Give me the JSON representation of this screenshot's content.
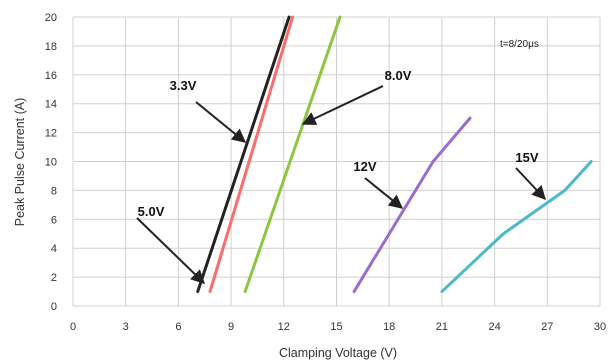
{
  "chart_data": {
    "type": "line",
    "xlabel": "Clamping Voltage (V)",
    "ylabel": "Peak  Pulse Current (A)",
    "xlim": [
      0,
      30
    ],
    "ylim": [
      0,
      20
    ],
    "xticks": [
      "0",
      "3",
      "6",
      "9",
      "12",
      "15",
      "18",
      "21",
      "24",
      "27",
      "30"
    ],
    "yticks": [
      "0",
      "2",
      "4",
      "6",
      "8",
      "10",
      "12",
      "14",
      "16",
      "18",
      "20"
    ],
    "grid": true,
    "annotation": "t=8/20μs",
    "series": [
      {
        "name": "3.3V",
        "color": "#ff6b6b",
        "x": [
          7.8,
          12.5
        ],
        "y": [
          1,
          20
        ]
      },
      {
        "name": "5.0V",
        "color": "#222222",
        "x": [
          7.1,
          12.3
        ],
        "y": [
          1,
          20
        ]
      },
      {
        "name": "8.0V",
        "color": "#8cc63f",
        "x": [
          9.8,
          15.2
        ],
        "y": [
          1,
          20
        ]
      },
      {
        "name": "12V",
        "color": "#9b6ccf",
        "x": [
          16.0,
          20.5,
          22.6
        ],
        "y": [
          1,
          10,
          13
        ]
      },
      {
        "name": "15V",
        "color": "#4db8cc",
        "x": [
          21.0,
          24.5,
          28.0,
          29.5
        ],
        "y": [
          1,
          5,
          8,
          10
        ]
      }
    ]
  }
}
